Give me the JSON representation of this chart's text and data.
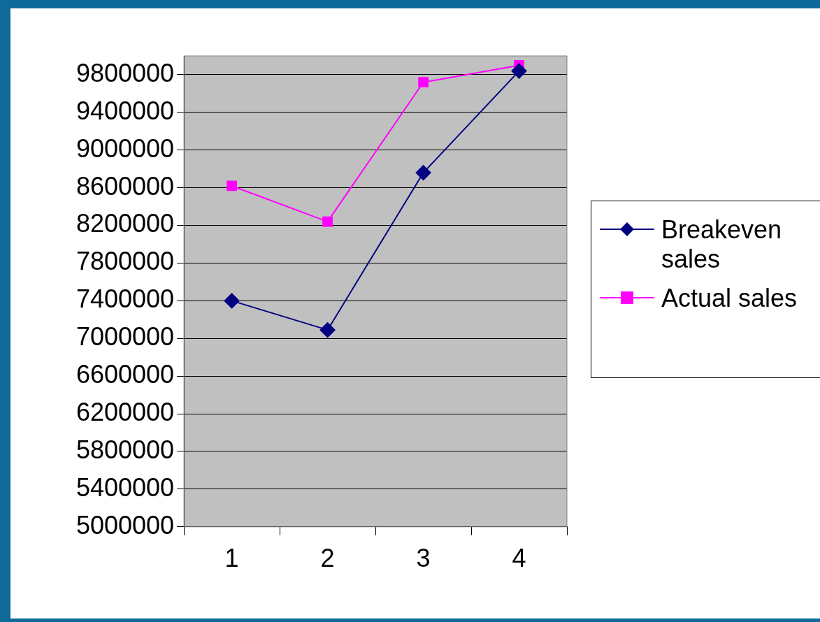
{
  "chart_data": {
    "type": "line",
    "categories": [
      "1",
      "2",
      "3",
      "4"
    ],
    "series": [
      {
        "name": "Breakeven sales",
        "color": "#000080",
        "values": [
          7400000,
          7090000,
          8760000,
          9840000
        ],
        "marker": "diamond"
      },
      {
        "name": "Actual sales",
        "color": "#ff00ff",
        "values": [
          8620000,
          8240000,
          9720000,
          9900000
        ],
        "marker": "square"
      }
    ],
    "ylim": [
      5000000,
      10000000
    ],
    "yticks": [
      5000000,
      5400000,
      5800000,
      6200000,
      6600000,
      7000000,
      7400000,
      7800000,
      8200000,
      8600000,
      9000000,
      9400000,
      9800000
    ],
    "grid": "y",
    "legend": "right",
    "line_style": "solid"
  }
}
